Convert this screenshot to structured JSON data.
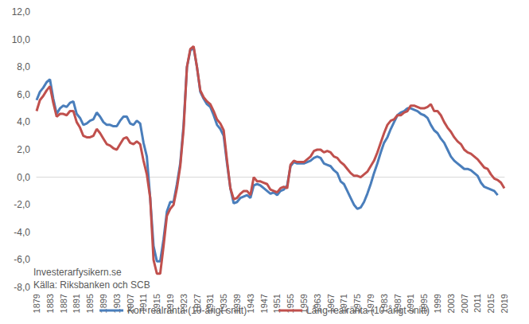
{
  "chart_data": {
    "type": "line",
    "categories": [
      "1879",
      null,
      null,
      null,
      "1883",
      null,
      null,
      null,
      "1887",
      null,
      null,
      null,
      "1891",
      null,
      null,
      null,
      "1895",
      null,
      null,
      null,
      "1899",
      null,
      null,
      null,
      "1903",
      null,
      null,
      null,
      "1907",
      null,
      null,
      null,
      "1911",
      null,
      null,
      null,
      "1915",
      null,
      null,
      null,
      "1919",
      null,
      null,
      null,
      "1923",
      null,
      null,
      null,
      "1927",
      null,
      null,
      null,
      "1931",
      null,
      null,
      null,
      "1935",
      null,
      null,
      null,
      "1939",
      null,
      null,
      null,
      "1943",
      null,
      null,
      null,
      "1947",
      null,
      null,
      null,
      "1951",
      null,
      null,
      null,
      "1955",
      null,
      null,
      null,
      "1959",
      null,
      null,
      null,
      "1963",
      null,
      null,
      null,
      "1967",
      null,
      null,
      null,
      "1971",
      null,
      null,
      null,
      "1975",
      null,
      null,
      null,
      "1979",
      null,
      null,
      null,
      "1983",
      null,
      null,
      null,
      "1987",
      null,
      null,
      null,
      "1991",
      null,
      null,
      null,
      "1995",
      null,
      null,
      null,
      "1999",
      null,
      null,
      null,
      "2003",
      null,
      null,
      null,
      "2007",
      null,
      null,
      null,
      "2011",
      null,
      null,
      null,
      "2015",
      null,
      null,
      null,
      "2019"
    ],
    "series": [
      {
        "name": "Kort realränta (10-årigt snitt)",
        "color": "#4a7ebb",
        "values": [
          5.6,
          6.2,
          6.5,
          6.9,
          7.1,
          5.7,
          4.6,
          5.0,
          5.2,
          5.1,
          5.4,
          5.5,
          4.6,
          4.3,
          3.8,
          3.9,
          4.1,
          4.2,
          4.7,
          4.4,
          4.0,
          3.8,
          3.8,
          3.7,
          3.7,
          4.1,
          4.4,
          4.4,
          3.9,
          3.8,
          4.1,
          3.9,
          2.5,
          1.5,
          -1.5,
          -5.0,
          -6.1,
          -6.1,
          -4.5,
          -2.5,
          -1.8,
          -1.8,
          -0.5,
          1.0,
          3.8,
          8.0,
          9.2,
          9.4,
          8.0,
          6.2,
          5.7,
          5.3,
          5.1,
          4.5,
          3.8,
          3.5,
          3.0,
          1.0,
          -0.8,
          -1.9,
          -1.8,
          -1.5,
          -1.4,
          -1.3,
          -1.5,
          -0.6,
          -0.5,
          -0.6,
          -0.8,
          -1.0,
          -1.2,
          -1.1,
          -1.3,
          -1.0,
          -0.9,
          -0.6,
          0.8,
          1.1,
          1.0,
          1.0,
          1.0,
          1.1,
          1.2,
          1.4,
          1.5,
          1.4,
          1.0,
          0.9,
          0.8,
          0.5,
          0.3,
          -0.3,
          -0.5,
          -1.0,
          -1.5,
          -2.0,
          -2.3,
          -2.2,
          -1.8,
          -1.2,
          -0.5,
          0.3,
          1.0,
          1.8,
          2.5,
          2.9,
          3.5,
          4.0,
          4.5,
          4.7,
          4.8,
          5.0,
          5.0,
          4.9,
          4.8,
          4.6,
          4.5,
          4.3,
          3.8,
          3.4,
          3.2,
          2.8,
          2.5,
          2.0,
          1.5,
          1.2,
          1.0,
          0.8,
          0.6,
          0.6,
          0.5,
          0.3,
          0.1,
          -0.4,
          -0.7,
          -0.8,
          -0.9,
          -1.0,
          -1.3,
          null,
          null
        ]
      },
      {
        "name": "Lång realränta (10-årigt snitt)",
        "color": "#c0504d",
        "values": [
          4.8,
          5.6,
          5.9,
          6.3,
          6.6,
          5.4,
          4.4,
          4.6,
          4.6,
          4.5,
          4.8,
          4.8,
          4.0,
          3.6,
          3.0,
          2.9,
          2.9,
          3.0,
          3.5,
          3.2,
          2.8,
          2.4,
          2.3,
          2.1,
          2.0,
          2.4,
          2.8,
          2.9,
          2.5,
          2.4,
          2.6,
          2.4,
          1.2,
          0.2,
          -1.5,
          -6.0,
          -7.0,
          -7.0,
          -5.0,
          -2.8,
          -2.3,
          -2.0,
          -0.8,
          0.8,
          3.5,
          8.0,
          9.3,
          9.5,
          8.0,
          6.3,
          5.8,
          5.5,
          5.3,
          4.8,
          4.2,
          3.9,
          3.4,
          1.2,
          -0.8,
          -1.6,
          -1.5,
          -1.2,
          -1.0,
          -1.0,
          -1.3,
          0.0,
          -0.3,
          -0.3,
          -0.4,
          -0.5,
          -0.9,
          -1.0,
          -1.1,
          -0.8,
          -0.7,
          -0.8,
          0.9,
          1.2,
          1.1,
          1.1,
          1.1,
          1.3,
          1.5,
          1.9,
          2.0,
          2.0,
          1.8,
          1.9,
          1.8,
          1.5,
          1.4,
          1.1,
          0.9,
          0.6,
          0.3,
          0.1,
          0.1,
          0.0,
          0.2,
          0.4,
          0.8,
          1.2,
          1.8,
          2.5,
          3.2,
          3.8,
          4.1,
          4.2,
          4.5,
          4.5,
          4.7,
          4.8,
          5.2,
          5.2,
          5.1,
          5.0,
          5.0,
          5.1,
          5.3,
          4.8,
          4.8,
          4.5,
          4.0,
          3.6,
          3.3,
          2.9,
          2.6,
          2.4,
          2.0,
          1.8,
          1.7,
          1.5,
          1.3,
          1.0,
          0.7,
          0.6,
          0.2,
          -0.1,
          -0.2,
          -0.4,
          -0.8
        ]
      }
    ],
    "ylim": [
      -8,
      12
    ],
    "yticks": [
      {
        "value": -8,
        "label": "-8,0"
      },
      {
        "value": -6,
        "label": "-6,0"
      },
      {
        "value": -4,
        "label": "-4,0"
      },
      {
        "value": -2,
        "label": "-2,0"
      },
      {
        "value": 0,
        "label": "0,0"
      },
      {
        "value": 2,
        "label": "2,0"
      },
      {
        "value": 4,
        "label": "4,0"
      },
      {
        "value": 6,
        "label": "6,0"
      },
      {
        "value": 8,
        "label": "8,0"
      },
      {
        "value": 10,
        "label": "10,0"
      },
      {
        "value": 12,
        "label": "12,0"
      }
    ],
    "grid": false,
    "legend": "bottom",
    "annotations": [
      "Investerarfysikern.se",
      "Källa: Riksbanken och SCB"
    ]
  }
}
